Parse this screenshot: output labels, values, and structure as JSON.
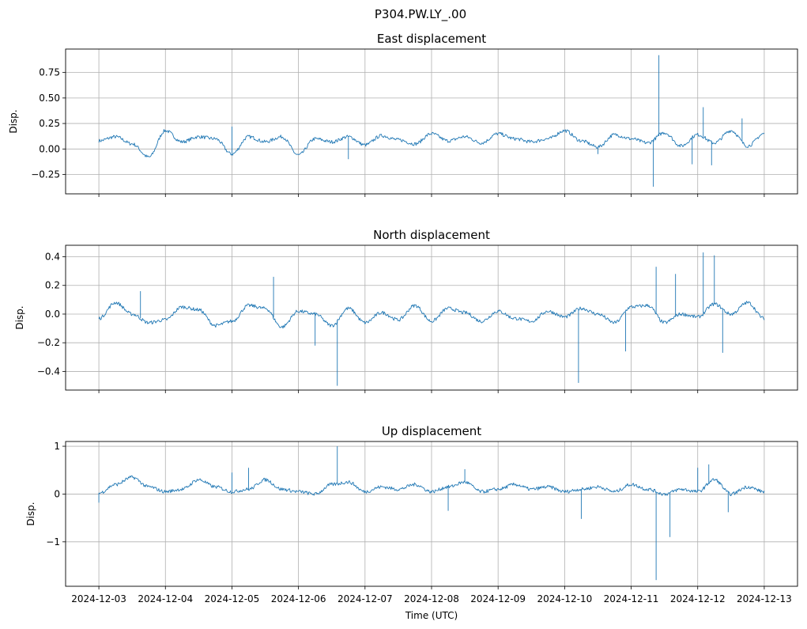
{
  "figure": {
    "suptitle": "P304.PW.LY_.00",
    "xlabel": "Time (UTC)"
  },
  "chart_data": [
    {
      "type": "line",
      "title": "East displacement",
      "ylabel": "Disp.",
      "xlim": [
        "2024-12-02T12:00",
        "2024-12-13T12:00"
      ],
      "ylim": [
        -0.44,
        0.98
      ],
      "yticks": [
        -0.25,
        0.0,
        0.25,
        0.5,
        0.75
      ],
      "ytick_labels": [
        "−0.25",
        "0.00",
        "0.25",
        "0.50",
        "0.75"
      ],
      "grid": true,
      "series": [
        {
          "x": [
            "2024-12-03T00:00",
            "2024-12-03T06:00",
            "2024-12-03T12:00",
            "2024-12-03T18:00",
            "2024-12-04T00:00",
            "2024-12-04T06:00",
            "2024-12-04T12:00",
            "2024-12-04T18:00",
            "2024-12-05T00:00",
            "2024-12-05T06:00",
            "2024-12-05T12:00",
            "2024-12-05T18:00",
            "2024-12-06T00:00",
            "2024-12-06T06:00",
            "2024-12-06T12:00",
            "2024-12-06T18:00",
            "2024-12-07T00:00",
            "2024-12-07T06:00",
            "2024-12-07T12:00",
            "2024-12-07T18:00",
            "2024-12-08T00:00",
            "2024-12-08T06:00",
            "2024-12-08T12:00",
            "2024-12-08T18:00",
            "2024-12-09T00:00",
            "2024-12-09T06:00",
            "2024-12-09T12:00",
            "2024-12-09T18:00",
            "2024-12-10T00:00",
            "2024-12-10T06:00",
            "2024-12-10T12:00",
            "2024-12-10T18:00",
            "2024-12-11T00:00",
            "2024-12-11T06:00",
            "2024-12-11T12:00",
            "2024-12-11T18:00",
            "2024-12-12T00:00",
            "2024-12-12T06:00",
            "2024-12-12T12:00",
            "2024-12-12T18:00",
            "2024-12-13T00:00"
          ],
          "y": [
            0.08,
            0.12,
            0.05,
            -0.08,
            0.18,
            0.07,
            0.12,
            0.1,
            -0.05,
            0.12,
            0.07,
            0.12,
            -0.06,
            0.1,
            0.07,
            0.12,
            0.04,
            0.13,
            0.09,
            0.05,
            0.15,
            0.08,
            0.12,
            0.06,
            0.15,
            0.1,
            0.07,
            0.1,
            0.18,
            0.08,
            0.02,
            0.14,
            0.1,
            0.06,
            0.16,
            0.03,
            0.14,
            0.06,
            0.18,
            0.03,
            0.15
          ]
        }
      ],
      "spikes": [
        {
          "x": "2024-12-05T00:00",
          "y": 0.22
        },
        {
          "x": "2024-12-06T18:00",
          "y": -0.1
        },
        {
          "x": "2024-12-10T12:00",
          "y": -0.05
        },
        {
          "x": "2024-12-11T08:00",
          "y": -0.37
        },
        {
          "x": "2024-12-11T10:00",
          "y": 0.92
        },
        {
          "x": "2024-12-11T22:00",
          "y": -0.15
        },
        {
          "x": "2024-12-12T02:00",
          "y": 0.41
        },
        {
          "x": "2024-12-12T05:00",
          "y": -0.16
        },
        {
          "x": "2024-12-12T16:00",
          "y": 0.3
        }
      ]
    },
    {
      "type": "line",
      "title": "North displacement",
      "ylabel": "Disp.",
      "xlim": [
        "2024-12-02T12:00",
        "2024-12-13T12:00"
      ],
      "ylim": [
        -0.53,
        0.48
      ],
      "yticks": [
        -0.4,
        -0.2,
        0.0,
        0.2,
        0.4
      ],
      "ytick_labels": [
        "−0.4",
        "−0.2",
        "0.0",
        "0.2",
        "0.4"
      ],
      "grid": true,
      "series": [
        {
          "x": [
            "2024-12-03T00:00",
            "2024-12-03T06:00",
            "2024-12-03T12:00",
            "2024-12-03T18:00",
            "2024-12-04T00:00",
            "2024-12-04T06:00",
            "2024-12-04T12:00",
            "2024-12-04T18:00",
            "2024-12-05T00:00",
            "2024-12-05T06:00",
            "2024-12-05T12:00",
            "2024-12-05T18:00",
            "2024-12-06T00:00",
            "2024-12-06T06:00",
            "2024-12-06T12:00",
            "2024-12-06T18:00",
            "2024-12-07T00:00",
            "2024-12-07T06:00",
            "2024-12-07T12:00",
            "2024-12-07T18:00",
            "2024-12-08T00:00",
            "2024-12-08T06:00",
            "2024-12-08T12:00",
            "2024-12-08T18:00",
            "2024-12-09T00:00",
            "2024-12-09T06:00",
            "2024-12-09T12:00",
            "2024-12-09T18:00",
            "2024-12-10T00:00",
            "2024-12-10T06:00",
            "2024-12-10T12:00",
            "2024-12-10T18:00",
            "2024-12-11T00:00",
            "2024-12-11T06:00",
            "2024-12-11T12:00",
            "2024-12-11T18:00",
            "2024-12-12T00:00",
            "2024-12-12T06:00",
            "2024-12-12T12:00",
            "2024-12-12T18:00",
            "2024-12-13T00:00"
          ],
          "y": [
            -0.03,
            0.08,
            0.0,
            -0.06,
            -0.04,
            0.05,
            0.03,
            -0.08,
            -0.05,
            0.06,
            0.04,
            -0.09,
            0.02,
            0.0,
            -0.08,
            0.04,
            -0.06,
            0.01,
            -0.04,
            0.06,
            -0.05,
            0.04,
            0.01,
            -0.05,
            0.02,
            -0.03,
            -0.05,
            0.02,
            -0.02,
            0.04,
            0.0,
            -0.06,
            0.05,
            0.06,
            -0.06,
            0.0,
            -0.02,
            0.07,
            0.0,
            0.08,
            -0.03
          ]
        }
      ],
      "spikes": [
        {
          "x": "2024-12-03T15:00",
          "y": 0.16
        },
        {
          "x": "2024-12-05T15:00",
          "y": 0.26
        },
        {
          "x": "2024-12-06T06:00",
          "y": -0.22
        },
        {
          "x": "2024-12-06T14:00",
          "y": -0.5
        },
        {
          "x": "2024-12-10T05:00",
          "y": -0.48
        },
        {
          "x": "2024-12-10T22:00",
          "y": -0.26
        },
        {
          "x": "2024-12-11T09:00",
          "y": 0.33
        },
        {
          "x": "2024-12-11T16:00",
          "y": 0.28
        },
        {
          "x": "2024-12-12T02:00",
          "y": 0.43
        },
        {
          "x": "2024-12-12T06:00",
          "y": 0.41
        },
        {
          "x": "2024-12-12T09:00",
          "y": -0.27
        }
      ]
    },
    {
      "type": "line",
      "title": "Up displacement",
      "ylabel": "Disp.",
      "xlim": [
        "2024-12-02T12:00",
        "2024-12-13T12:00"
      ],
      "ylim": [
        -1.93,
        1.1
      ],
      "yticks": [
        -1,
        0,
        1
      ],
      "ytick_labels": [
        "−1",
        "0",
        "1"
      ],
      "grid": true,
      "series": [
        {
          "x": [
            "2024-12-03T00:00",
            "2024-12-03T06:00",
            "2024-12-03T12:00",
            "2024-12-03T18:00",
            "2024-12-04T00:00",
            "2024-12-04T06:00",
            "2024-12-04T12:00",
            "2024-12-04T18:00",
            "2024-12-05T00:00",
            "2024-12-05T06:00",
            "2024-12-05T12:00",
            "2024-12-05T18:00",
            "2024-12-06T00:00",
            "2024-12-06T06:00",
            "2024-12-06T12:00",
            "2024-12-06T18:00",
            "2024-12-07T00:00",
            "2024-12-07T06:00",
            "2024-12-07T12:00",
            "2024-12-07T18:00",
            "2024-12-08T00:00",
            "2024-12-08T06:00",
            "2024-12-08T12:00",
            "2024-12-08T18:00",
            "2024-12-09T00:00",
            "2024-12-09T06:00",
            "2024-12-09T12:00",
            "2024-12-09T18:00",
            "2024-12-10T00:00",
            "2024-12-10T06:00",
            "2024-12-10T12:00",
            "2024-12-10T18:00",
            "2024-12-11T00:00",
            "2024-12-11T06:00",
            "2024-12-11T12:00",
            "2024-12-11T18:00",
            "2024-12-12T00:00",
            "2024-12-12T06:00",
            "2024-12-12T12:00",
            "2024-12-12T18:00",
            "2024-12-13T00:00"
          ],
          "y": [
            0.02,
            0.2,
            0.35,
            0.15,
            0.05,
            0.1,
            0.3,
            0.15,
            0.05,
            0.1,
            0.3,
            0.1,
            0.05,
            0.0,
            0.2,
            0.25,
            0.05,
            0.15,
            0.1,
            0.2,
            0.05,
            0.15,
            0.25,
            0.05,
            0.1,
            0.2,
            0.1,
            0.15,
            0.05,
            0.1,
            0.15,
            0.05,
            0.2,
            0.1,
            0.0,
            0.1,
            0.05,
            0.3,
            0.0,
            0.15,
            0.05
          ]
        }
      ],
      "spikes": [
        {
          "x": "2024-12-03T00:00",
          "y": -0.18
        },
        {
          "x": "2024-12-05T00:00",
          "y": 0.45
        },
        {
          "x": "2024-12-05T06:00",
          "y": 0.55
        },
        {
          "x": "2024-12-06T14:00",
          "y": 1.0
        },
        {
          "x": "2024-12-08T06:00",
          "y": -0.35
        },
        {
          "x": "2024-12-08T12:00",
          "y": 0.52
        },
        {
          "x": "2024-12-10T06:00",
          "y": -0.52
        },
        {
          "x": "2024-12-11T09:00",
          "y": -1.8
        },
        {
          "x": "2024-12-11T14:00",
          "y": -0.9
        },
        {
          "x": "2024-12-12T00:00",
          "y": 0.55
        },
        {
          "x": "2024-12-12T04:00",
          "y": 0.62
        },
        {
          "x": "2024-12-12T11:00",
          "y": -0.38
        }
      ]
    }
  ],
  "xticks": [
    "2024-12-03",
    "2024-12-04",
    "2024-12-05",
    "2024-12-06",
    "2024-12-07",
    "2024-12-08",
    "2024-12-09",
    "2024-12-10",
    "2024-12-11",
    "2024-12-12",
    "2024-12-13"
  ]
}
